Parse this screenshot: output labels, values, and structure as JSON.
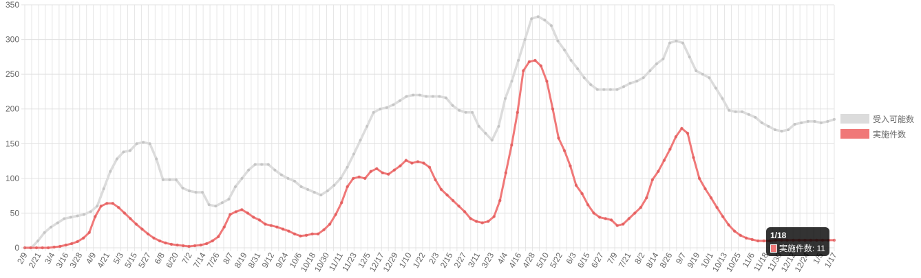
{
  "chart_data": {
    "type": "line",
    "ylim": [
      0,
      350
    ],
    "yticks": [
      0,
      50,
      100,
      150,
      200,
      250,
      300,
      350
    ],
    "grid": true,
    "legend_position": "right",
    "x_tick_labels": [
      "2/9",
      "2/21",
      "3/4",
      "3/16",
      "3/28",
      "4/9",
      "4/21",
      "5/3",
      "5/15",
      "5/27",
      "6/8",
      "6/20",
      "7/2",
      "7/14",
      "7/26",
      "8/7",
      "8/19",
      "8/31",
      "9/12",
      "9/24",
      "10/6",
      "10/18",
      "10/30",
      "11/11",
      "11/23",
      "12/5",
      "12/17",
      "12/29",
      "1/10",
      "1/22",
      "2/3",
      "2/15",
      "2/27",
      "3/11",
      "3/23",
      "4/4",
      "4/16",
      "4/28",
      "5/10",
      "5/22",
      "6/3",
      "6/15",
      "6/27",
      "7/9",
      "7/21",
      "8/2",
      "8/14",
      "8/26",
      "9/7",
      "9/19",
      "10/1",
      "10/13",
      "10/25",
      "11/6",
      "11/18",
      "11/30",
      "12/12",
      "12/24",
      "1/5",
      "1/17"
    ],
    "series": [
      {
        "name": "受入可能数",
        "color": "#dcdcdc",
        "point_color": "#bdbdbd",
        "values": [
          0,
          0,
          10,
          22,
          30,
          36,
          42,
          44,
          46,
          48,
          52,
          60,
          85,
          110,
          128,
          138,
          140,
          150,
          152,
          150,
          128,
          98,
          98,
          98,
          86,
          82,
          80,
          80,
          62,
          60,
          65,
          70,
          88,
          100,
          112,
          120,
          120,
          120,
          112,
          105,
          100,
          96,
          88,
          84,
          80,
          76,
          82,
          90,
          100,
          116,
          135,
          155,
          175,
          195,
          200,
          202,
          206,
          212,
          218,
          220,
          220,
          218,
          218,
          218,
          216,
          205,
          198,
          195,
          195,
          175,
          165,
          155,
          175,
          215,
          240,
          270,
          300,
          330,
          333,
          328,
          320,
          298,
          285,
          270,
          258,
          245,
          235,
          228,
          228,
          228,
          228,
          232,
          237,
          240,
          245,
          255,
          265,
          272,
          295,
          298,
          295,
          275,
          255,
          250,
          245,
          230,
          215,
          198,
          196,
          196,
          192,
          188,
          180,
          175,
          170,
          168,
          170,
          178,
          180,
          182,
          182,
          180,
          182,
          185
        ]
      },
      {
        "name": "実施件数",
        "color": "#f07878",
        "point_color": "#e05a5a",
        "values": [
          0,
          0,
          0,
          0,
          0,
          1,
          2,
          4,
          6,
          9,
          14,
          22,
          45,
          60,
          64,
          64,
          58,
          50,
          42,
          34,
          27,
          20,
          14,
          10,
          7,
          5,
          4,
          3,
          2,
          3,
          4,
          6,
          10,
          16,
          30,
          48,
          52,
          55,
          50,
          44,
          40,
          34,
          32,
          30,
          27,
          24,
          20,
          17,
          18,
          20,
          20,
          26,
          34,
          48,
          65,
          88,
          100,
          102,
          100,
          110,
          114,
          108,
          106,
          112,
          118,
          126,
          122,
          124,
          122,
          116,
          98,
          84,
          76,
          68,
          60,
          52,
          42,
          38,
          36,
          38,
          45,
          68,
          108,
          148,
          195,
          255,
          268,
          270,
          262,
          240,
          200,
          158,
          140,
          118,
          90,
          78,
          62,
          50,
          44,
          42,
          40,
          32,
          34,
          42,
          50,
          58,
          72,
          98,
          110,
          126,
          142,
          160,
          172,
          165,
          130,
          100,
          85,
          72,
          58,
          45,
          33,
          24,
          18,
          14,
          12,
          10,
          10,
          10,
          11,
          11,
          11,
          11,
          11,
          11,
          11,
          11,
          11,
          11,
          11
        ]
      }
    ]
  },
  "tooltip": {
    "title": "1/18",
    "label": "実施件数: 11"
  }
}
